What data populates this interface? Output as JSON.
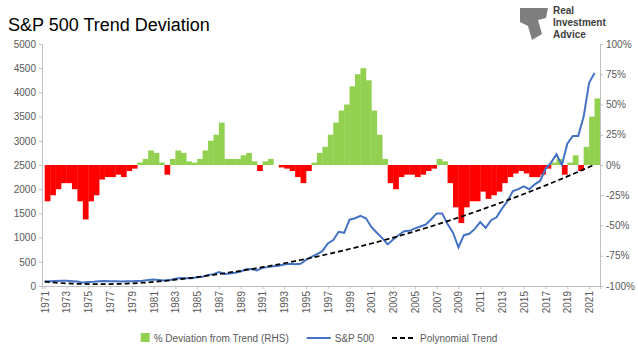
{
  "chart_data": {
    "type": "combo",
    "title": "S&P 500 Trend Deviation",
    "annotations": [
      "Real Investment Advice"
    ],
    "x": [
      1971,
      1971.5,
      1972,
      1972.5,
      1973,
      1973.5,
      1974,
      1974.5,
      1975,
      1975.5,
      1976,
      1976.5,
      1977,
      1977.5,
      1978,
      1978.5,
      1979,
      1979.5,
      1980,
      1980.5,
      1981,
      1981.5,
      1982,
      1982.5,
      1983,
      1983.5,
      1984,
      1984.5,
      1985,
      1985.5,
      1986,
      1986.5,
      1987,
      1987.5,
      1988,
      1988.5,
      1989,
      1989.5,
      1990,
      1990.5,
      1991,
      1991.5,
      1992,
      1992.5,
      1993,
      1993.5,
      1994,
      1994.5,
      1995,
      1995.5,
      1996,
      1996.5,
      1997,
      1997.5,
      1998,
      1998.5,
      1999,
      1999.5,
      2000,
      2000.5,
      2001,
      2001.5,
      2002,
      2002.5,
      2003,
      2003.5,
      2004,
      2004.5,
      2005,
      2005.5,
      2006,
      2006.5,
      2007,
      2007.5,
      2008,
      2008.5,
      2009,
      2009.5,
      2010,
      2010.5,
      2011,
      2011.5,
      2012,
      2012.5,
      2013,
      2013.5,
      2014,
      2014.5,
      2015,
      2015.5,
      2016,
      2016.5,
      2017,
      2017.5,
      2018,
      2018.5,
      2019,
      2019.5,
      2020,
      2020.5,
      2021,
      2021.5
    ],
    "xlim": [
      1970.75,
      2022
    ],
    "xticks": [
      1971,
      1973,
      1975,
      1977,
      1979,
      1981,
      1983,
      1985,
      1987,
      1989,
      1991,
      1993,
      1995,
      1997,
      1999,
      2001,
      2003,
      2005,
      2007,
      2009,
      2011,
      2013,
      2015,
      2017,
      2019,
      2021
    ],
    "ylim": [
      0,
      5000
    ],
    "yticks": [
      0,
      500,
      1000,
      1500,
      2000,
      2500,
      3000,
      3500,
      4000,
      4500,
      5000
    ],
    "y2lim": [
      -100,
      100
    ],
    "y2ticks": [
      {
        "value": -100,
        "label": "-100%"
      },
      {
        "value": -75,
        "label": "-75%"
      },
      {
        "value": -50,
        "label": "-50%"
      },
      {
        "value": -25,
        "label": "-25%"
      },
      {
        "value": 0,
        "label": "0%"
      },
      {
        "value": 25,
        "label": "25%"
      },
      {
        "value": 50,
        "label": "50%"
      },
      {
        "value": 75,
        "label": "75%"
      },
      {
        "value": 100,
        "label": "100%"
      }
    ],
    "grid": false,
    "legend": "bottom",
    "series": [
      {
        "name": "% Deviation from Trend (RHS)",
        "type": "bar",
        "axis": "y2",
        "color": "#92d050",
        "values": [
          -30,
          -25,
          -20,
          -15,
          -15,
          -20,
          -30,
          -45,
          -30,
          -25,
          -12,
          -10,
          -10,
          -8,
          -10,
          -5,
          -3,
          2,
          5,
          12,
          10,
          2,
          -8,
          5,
          12,
          10,
          3,
          2,
          5,
          12,
          20,
          25,
          35,
          5,
          5,
          5,
          8,
          10,
          3,
          -5,
          3,
          5,
          0,
          -2,
          -3,
          -5,
          -10,
          -15,
          -5,
          2,
          10,
          15,
          25,
          35,
          45,
          50,
          65,
          75,
          80,
          70,
          45,
          25,
          5,
          -15,
          -20,
          -10,
          -8,
          -8,
          -10,
          -8,
          -5,
          -3,
          5,
          3,
          -15,
          -35,
          -48,
          -35,
          -30,
          -30,
          -22,
          -28,
          -25,
          -22,
          -15,
          -10,
          -7,
          -5,
          -7,
          -10,
          -10,
          -8,
          -3,
          2,
          5,
          -8,
          2,
          8,
          -5,
          15,
          40,
          55
        ],
        "colors": [
          "#ff0000",
          "#ff0000",
          "#ff0000",
          "#ff0000",
          "#ff0000",
          "#ff0000",
          "#ff0000",
          "#ff0000",
          "#ff0000",
          "#ff0000",
          "#ff0000",
          "#ff0000",
          "#ff0000",
          "#ff0000",
          "#ff0000",
          "#ff0000",
          "#ff0000",
          "#92d050",
          "#92d050",
          "#92d050",
          "#92d050",
          "#92d050",
          "#ff0000",
          "#92d050",
          "#92d050",
          "#92d050",
          "#92d050",
          "#92d050",
          "#92d050",
          "#92d050",
          "#92d050",
          "#92d050",
          "#92d050",
          "#92d050",
          "#92d050",
          "#92d050",
          "#92d050",
          "#92d050",
          "#92d050",
          "#ff0000",
          "#92d050",
          "#92d050",
          "#92d050",
          "#ff0000",
          "#ff0000",
          "#ff0000",
          "#ff0000",
          "#ff0000",
          "#ff0000",
          "#92d050",
          "#92d050",
          "#92d050",
          "#92d050",
          "#92d050",
          "#92d050",
          "#92d050",
          "#92d050",
          "#92d050",
          "#92d050",
          "#92d050",
          "#92d050",
          "#92d050",
          "#92d050",
          "#ff0000",
          "#ff0000",
          "#ff0000",
          "#ff0000",
          "#ff0000",
          "#ff0000",
          "#ff0000",
          "#ff0000",
          "#ff0000",
          "#92d050",
          "#92d050",
          "#ff0000",
          "#ff0000",
          "#ff0000",
          "#ff0000",
          "#ff0000",
          "#ff0000",
          "#ff0000",
          "#ff0000",
          "#ff0000",
          "#ff0000",
          "#ff0000",
          "#ff0000",
          "#ff0000",
          "#ff0000",
          "#ff0000",
          "#ff0000",
          "#ff0000",
          "#ff0000",
          "#ff0000",
          "#92d050",
          "#92d050",
          "#ff0000",
          "#92d050",
          "#92d050",
          "#ff0000",
          "#92d050",
          "#92d050",
          "#92d050"
        ]
      },
      {
        "name": "S&P 500",
        "type": "line",
        "color": "#4472c4",
        "line_style": "solid",
        "values": [
          95,
          100,
          105,
          110,
          110,
          100,
          92,
          70,
          85,
          88,
          100,
          103,
          100,
          96,
          92,
          100,
          100,
          105,
          110,
          125,
          132,
          125,
          112,
          125,
          150,
          165,
          160,
          160,
          180,
          190,
          230,
          245,
          290,
          250,
          260,
          275,
          300,
          345,
          350,
          320,
          375,
          390,
          410,
          420,
          445,
          460,
          450,
          460,
          540,
          600,
          660,
          720,
          880,
          950,
          1120,
          1100,
          1370,
          1400,
          1450,
          1400,
          1220,
          1100,
          990,
          860,
          960,
          1050,
          1130,
          1140,
          1190,
          1230,
          1270,
          1380,
          1500,
          1500,
          1280,
          1100,
          800,
          1050,
          1080,
          1180,
          1320,
          1200,
          1360,
          1420,
          1600,
          1750,
          1960,
          2000,
          2060,
          2000,
          2100,
          2170,
          2420,
          2550,
          2720,
          2500,
          2940,
          3100,
          3100,
          3500,
          4200,
          4400
        ]
      },
      {
        "name": "Polynomial Trend",
        "type": "line",
        "color": "#000000",
        "line_style": "dashed",
        "values": [
          90,
          80,
          70,
          62,
          55,
          50,
          46,
          43,
          41,
          40,
          40,
          40,
          41,
          43,
          46,
          50,
          55,
          61,
          68,
          76,
          85,
          95,
          106,
          118,
          130,
          143,
          156,
          170,
          185,
          200,
          215,
          231,
          247,
          263,
          280,
          297,
          314,
          332,
          350,
          369,
          388,
          408,
          428,
          449,
          470,
          492,
          514,
          537,
          560,
          584,
          608,
          633,
          658,
          684,
          710,
          737,
          764,
          792,
          820,
          849,
          878,
          908,
          938,
          969,
          1000,
          1032,
          1064,
          1097,
          1130,
          1164,
          1198,
          1233,
          1268,
          1304,
          1340,
          1377,
          1414,
          1452,
          1490,
          1529,
          1568,
          1608,
          1648,
          1689,
          1730,
          1772,
          1814,
          1857,
          1900,
          1944,
          1988,
          2033,
          2078,
          2124,
          2170,
          2217,
          2264,
          2312,
          2360,
          2409,
          2458,
          2508
        ]
      }
    ]
  }
}
